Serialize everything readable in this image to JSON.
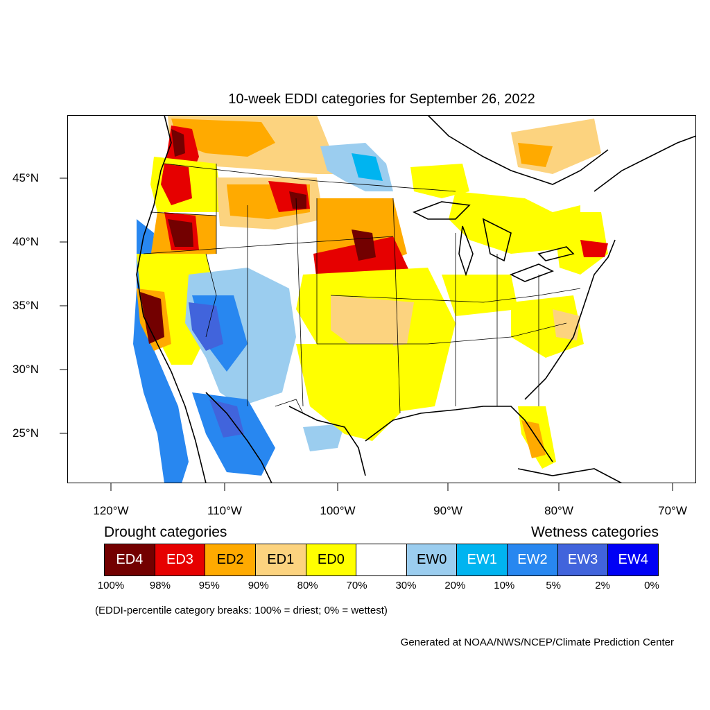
{
  "title": "10-week EDDI categories for September 26, 2022",
  "lat_labels": [
    "45°N",
    "40°N",
    "35°N",
    "30°N",
    "25°N"
  ],
  "lon_labels": [
    "120°W",
    "110°W",
    "100°W",
    "90°W",
    "80°W",
    "70°W"
  ],
  "legend": {
    "drought_heading": "Drought categories",
    "wetness_heading": "Wetness categories",
    "categories": [
      {
        "label": "ED4",
        "color": "#730000"
      },
      {
        "label": "ED3",
        "color": "#e60000"
      },
      {
        "label": "ED2",
        "color": "#ffaa00"
      },
      {
        "label": "ED1",
        "color": "#fcd37f"
      },
      {
        "label": "ED0",
        "color": "#ffff00"
      },
      {
        "label": "",
        "color": "#ffffff"
      },
      {
        "label": "EW0",
        "color": "#9bcdef"
      },
      {
        "label": "EW1",
        "color": "#00b4f0"
      },
      {
        "label": "EW2",
        "color": "#2887f0"
      },
      {
        "label": "EW3",
        "color": "#4164dc"
      },
      {
        "label": "EW4",
        "color": "#0000f5"
      }
    ],
    "percent_breaks": [
      "100%",
      "98%",
      "95%",
      "90%",
      "80%",
      "70%",
      "30%",
      "20%",
      "10%",
      "5%",
      "2%",
      "0%"
    ],
    "note": "(EDDI-percentile category breaks: 100% = driest; 0% = wettest)"
  },
  "credit": "Generated at NOAA/NWS/NCEP/Climate Prediction Center"
}
